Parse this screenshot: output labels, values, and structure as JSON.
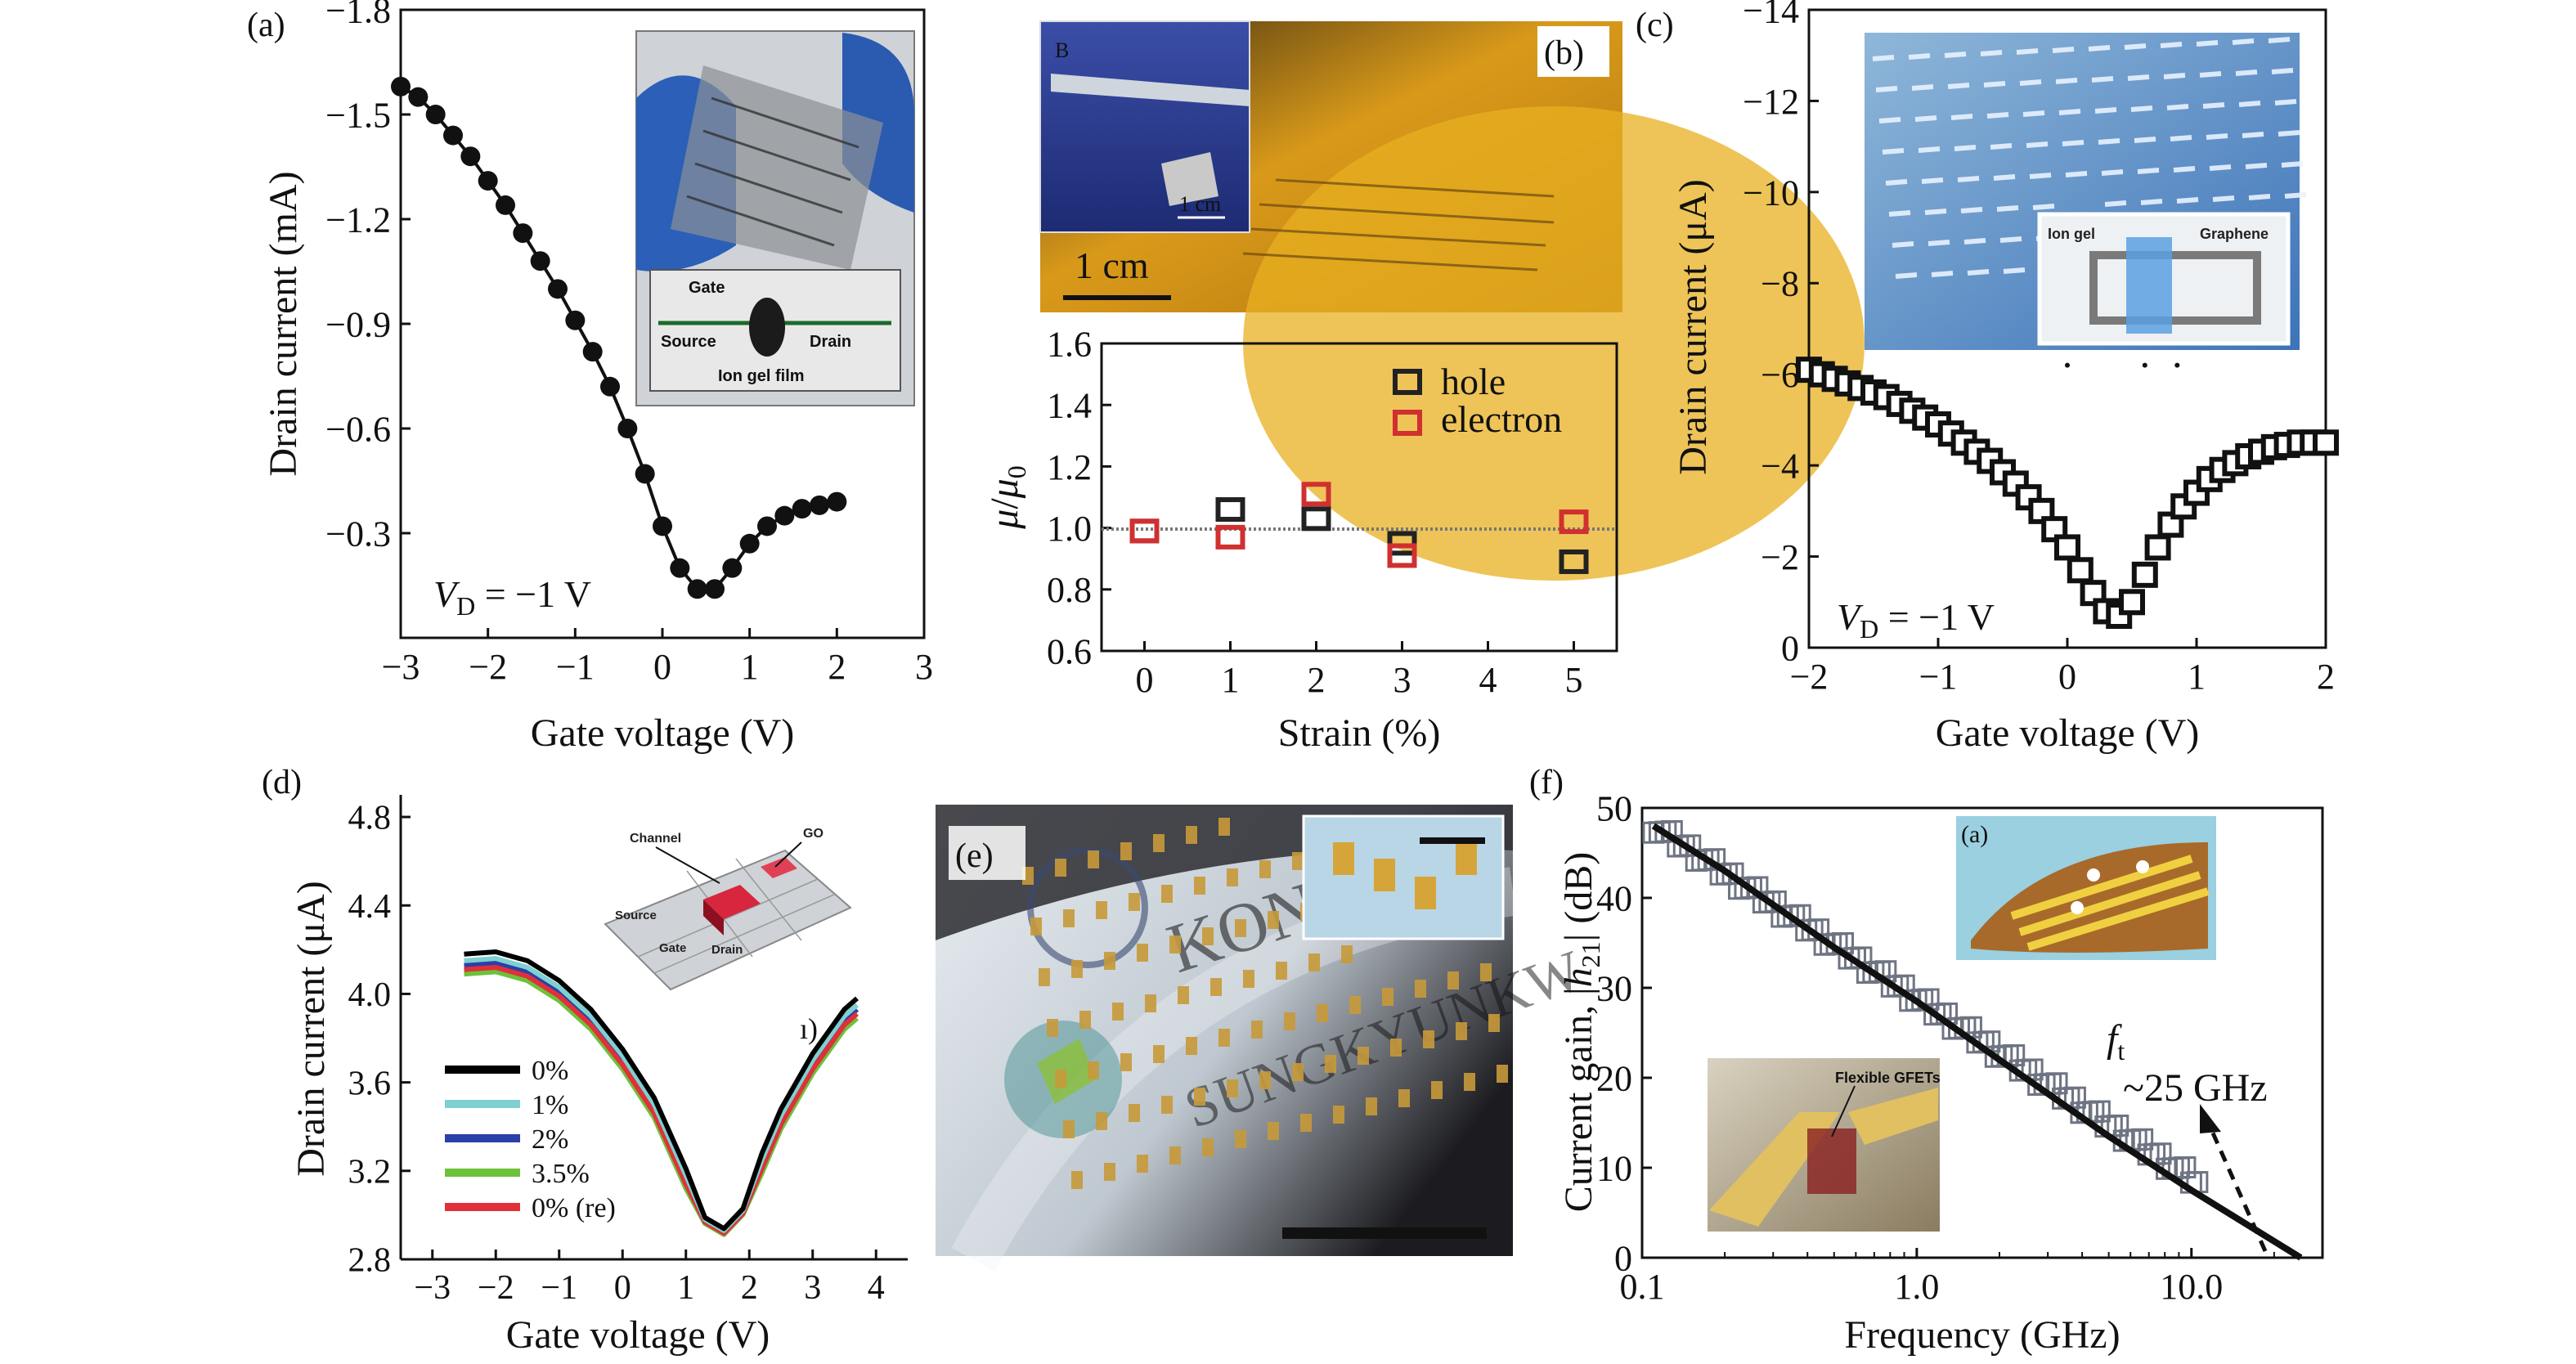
{
  "panels": {
    "a": {
      "label": "(a)",
      "chart_data": {
        "type": "line",
        "xlabel": "Gate voltage (V)",
        "ylabel": "Drain current (mA)",
        "xlim": [
          -3,
          3
        ],
        "ylim": [
          -1.8,
          0.0
        ],
        "x_ticks": [
          "−3",
          "−2",
          "−1",
          "0",
          "1",
          "2",
          "3"
        ],
        "y_ticks": [
          "−1.8",
          "−1.5",
          "−1.2",
          "−0.9",
          "−0.6",
          "−0.3"
        ],
        "annotation": "V_D = −1 V",
        "series": [
          {
            "x": [
              -3.0,
              -2.8,
              -2.6,
              -2.4,
              -2.2,
              -2.0,
              -1.8,
              -1.6,
              -1.4,
              -1.2,
              -1.0,
              -0.8,
              -0.6,
              -0.4,
              -0.2,
              0.0,
              0.2,
              0.4,
              0.6,
              0.8,
              1.0,
              1.2,
              1.4,
              1.6,
              1.8,
              2.0
            ],
            "y": [
              -1.58,
              -1.55,
              -1.5,
              -1.44,
              -1.38,
              -1.31,
              -1.24,
              -1.16,
              -1.08,
              -1.0,
              -0.91,
              -0.82,
              -0.72,
              -0.6,
              -0.47,
              -0.32,
              -0.2,
              -0.14,
              -0.14,
              -0.2,
              -0.27,
              -0.32,
              -0.35,
              -0.37,
              -0.38,
              -0.39
            ]
          }
        ]
      },
      "inset_labels": [
        "Gate",
        "Source",
        "Drain",
        "Ion gel film"
      ]
    },
    "b": {
      "label": "(b)",
      "photo_scale": "1 cm",
      "photo_inset_label": "B",
      "photo_inset_scale": "1 cm",
      "chart_data": {
        "type": "scatter",
        "xlabel": "Strain (%)",
        "ylabel": "μ/μ0",
        "xlim": [
          -0.5,
          5.5
        ],
        "ylim": [
          0.6,
          1.6
        ],
        "x_ticks": [
          "0",
          "1",
          "2",
          "3",
          "4",
          "5"
        ],
        "y_ticks": [
          "0.6",
          "0.8",
          "1.0",
          "1.2",
          "1.4",
          "1.6"
        ],
        "legend": "top-right",
        "series": [
          {
            "name": "hole",
            "color": "#222222",
            "x": [
              0,
              1,
              2,
              3,
              5
            ],
            "y": [
              0.99,
              1.06,
              1.03,
              0.95,
              0.89
            ]
          },
          {
            "name": "electron",
            "color": "#d03030",
            "x": [
              0,
              1,
              2,
              3,
              5
            ],
            "y": [
              0.99,
              0.97,
              1.11,
              0.91,
              1.02
            ]
          }
        ]
      }
    },
    "c": {
      "label": "(c)",
      "chart_data": {
        "type": "scatter",
        "xlabel": "Gate voltage (V)",
        "ylabel": "Drain current (μA)",
        "xlim": [
          -2,
          2
        ],
        "ylim": [
          -14,
          0
        ],
        "x_ticks": [
          "−2",
          "−1",
          "0",
          "1",
          "2"
        ],
        "y_ticks": [
          "−14",
          "−12",
          "−10",
          "−8",
          "−6",
          "−4",
          "−2",
          "0"
        ],
        "annotation": "V_D = −1 V",
        "series": [
          {
            "x": [
              -2.0,
              -1.9,
              -1.8,
              -1.7,
              -1.6,
              -1.5,
              -1.4,
              -1.3,
              -1.2,
              -1.1,
              -1.0,
              -0.9,
              -0.8,
              -0.7,
              -0.6,
              -0.5,
              -0.4,
              -0.3,
              -0.2,
              -0.1,
              0.0,
              0.1,
              0.2,
              0.3,
              0.4,
              0.5,
              0.6,
              0.7,
              0.8,
              0.9,
              1.0,
              1.1,
              1.2,
              1.3,
              1.4,
              1.5,
              1.6,
              1.7,
              1.8,
              1.9,
              2.0
            ],
            "y": [
              -6.1,
              -6.0,
              -5.9,
              -5.8,
              -5.7,
              -5.6,
              -5.5,
              -5.35,
              -5.2,
              -5.05,
              -4.9,
              -4.7,
              -4.5,
              -4.3,
              -4.1,
              -3.85,
              -3.6,
              -3.3,
              -3.0,
              -2.6,
              -2.2,
              -1.7,
              -1.2,
              -0.8,
              -0.7,
              -1.0,
              -1.6,
              -2.2,
              -2.7,
              -3.1,
              -3.4,
              -3.7,
              -3.9,
              -4.05,
              -4.2,
              -4.3,
              -4.4,
              -4.45,
              -4.5,
              -4.5,
              -4.5
            ]
          }
        ]
      },
      "inset_labels": [
        "Ion gel",
        "Graphene"
      ]
    },
    "d": {
      "label": "(d)",
      "chart_data": {
        "type": "line",
        "xlabel": "Gate voltage (V)",
        "ylabel": "Drain current (μA)",
        "xlim": [
          -3.5,
          4.5
        ],
        "ylim": [
          2.8,
          4.9
        ],
        "x_ticks": [
          "−3",
          "−2",
          "−1",
          "0",
          "1",
          "2",
          "3",
          "4"
        ],
        "y_ticks": [
          "2.8",
          "3.2",
          "3.6",
          "4.0",
          "4.4",
          "4.8"
        ],
        "legend": "bottom-left",
        "series": [
          {
            "name": "0%",
            "color": "#000000",
            "offset": 0.03
          },
          {
            "name": "1%",
            "color": "#7fd0d0",
            "offset": 0.0
          },
          {
            "name": "2%",
            "color": "#2a3fa8",
            "offset": -0.02
          },
          {
            "name": "3.5%",
            "color": "#6cc23a",
            "offset": -0.06
          },
          {
            "name": "0% (re)",
            "color": "#e0303a",
            "offset": -0.04
          }
        ],
        "curve_x": [
          -2.5,
          -2.0,
          -1.5,
          -1.0,
          -0.5,
          0.0,
          0.5,
          1.0,
          1.3,
          1.6,
          1.9,
          2.2,
          2.5,
          3.0,
          3.5,
          3.7
        ],
        "curve_y": [
          4.15,
          4.16,
          4.12,
          4.03,
          3.9,
          3.72,
          3.5,
          3.18,
          2.98,
          2.93,
          3.02,
          3.25,
          3.45,
          3.7,
          3.9,
          3.95
        ]
      },
      "inset_labels": [
        "Channel",
        "GO",
        "Source",
        "Gate",
        "Drain"
      ]
    },
    "e": {
      "label": "(e)"
    },
    "f": {
      "label": "(f)",
      "inset_label": "(a)",
      "inset_photo_label": "Flexible GFETs",
      "chart_data": {
        "type": "line",
        "xlabel": "Frequency (GHz)",
        "ylabel": "Current gain, |h21| (dB)",
        "x_scale": "log",
        "xlim": [
          0.1,
          30
        ],
        "ylim": [
          0,
          50
        ],
        "x_ticks": [
          "0.1",
          "1.0",
          "10.0"
        ],
        "y_ticks": [
          "0",
          "10",
          "20",
          "30",
          "40",
          "50"
        ],
        "annotation": "f_t ~25 GHz",
        "series": [
          {
            "x": [
              0.11,
              0.2,
              0.5,
              1.0,
              2.0,
              5.0,
              10.0,
              25.0
            ],
            "y": [
              48,
              43,
              34.5,
              28.5,
              22,
              13.5,
              7.5,
              0
            ]
          }
        ]
      }
    }
  }
}
